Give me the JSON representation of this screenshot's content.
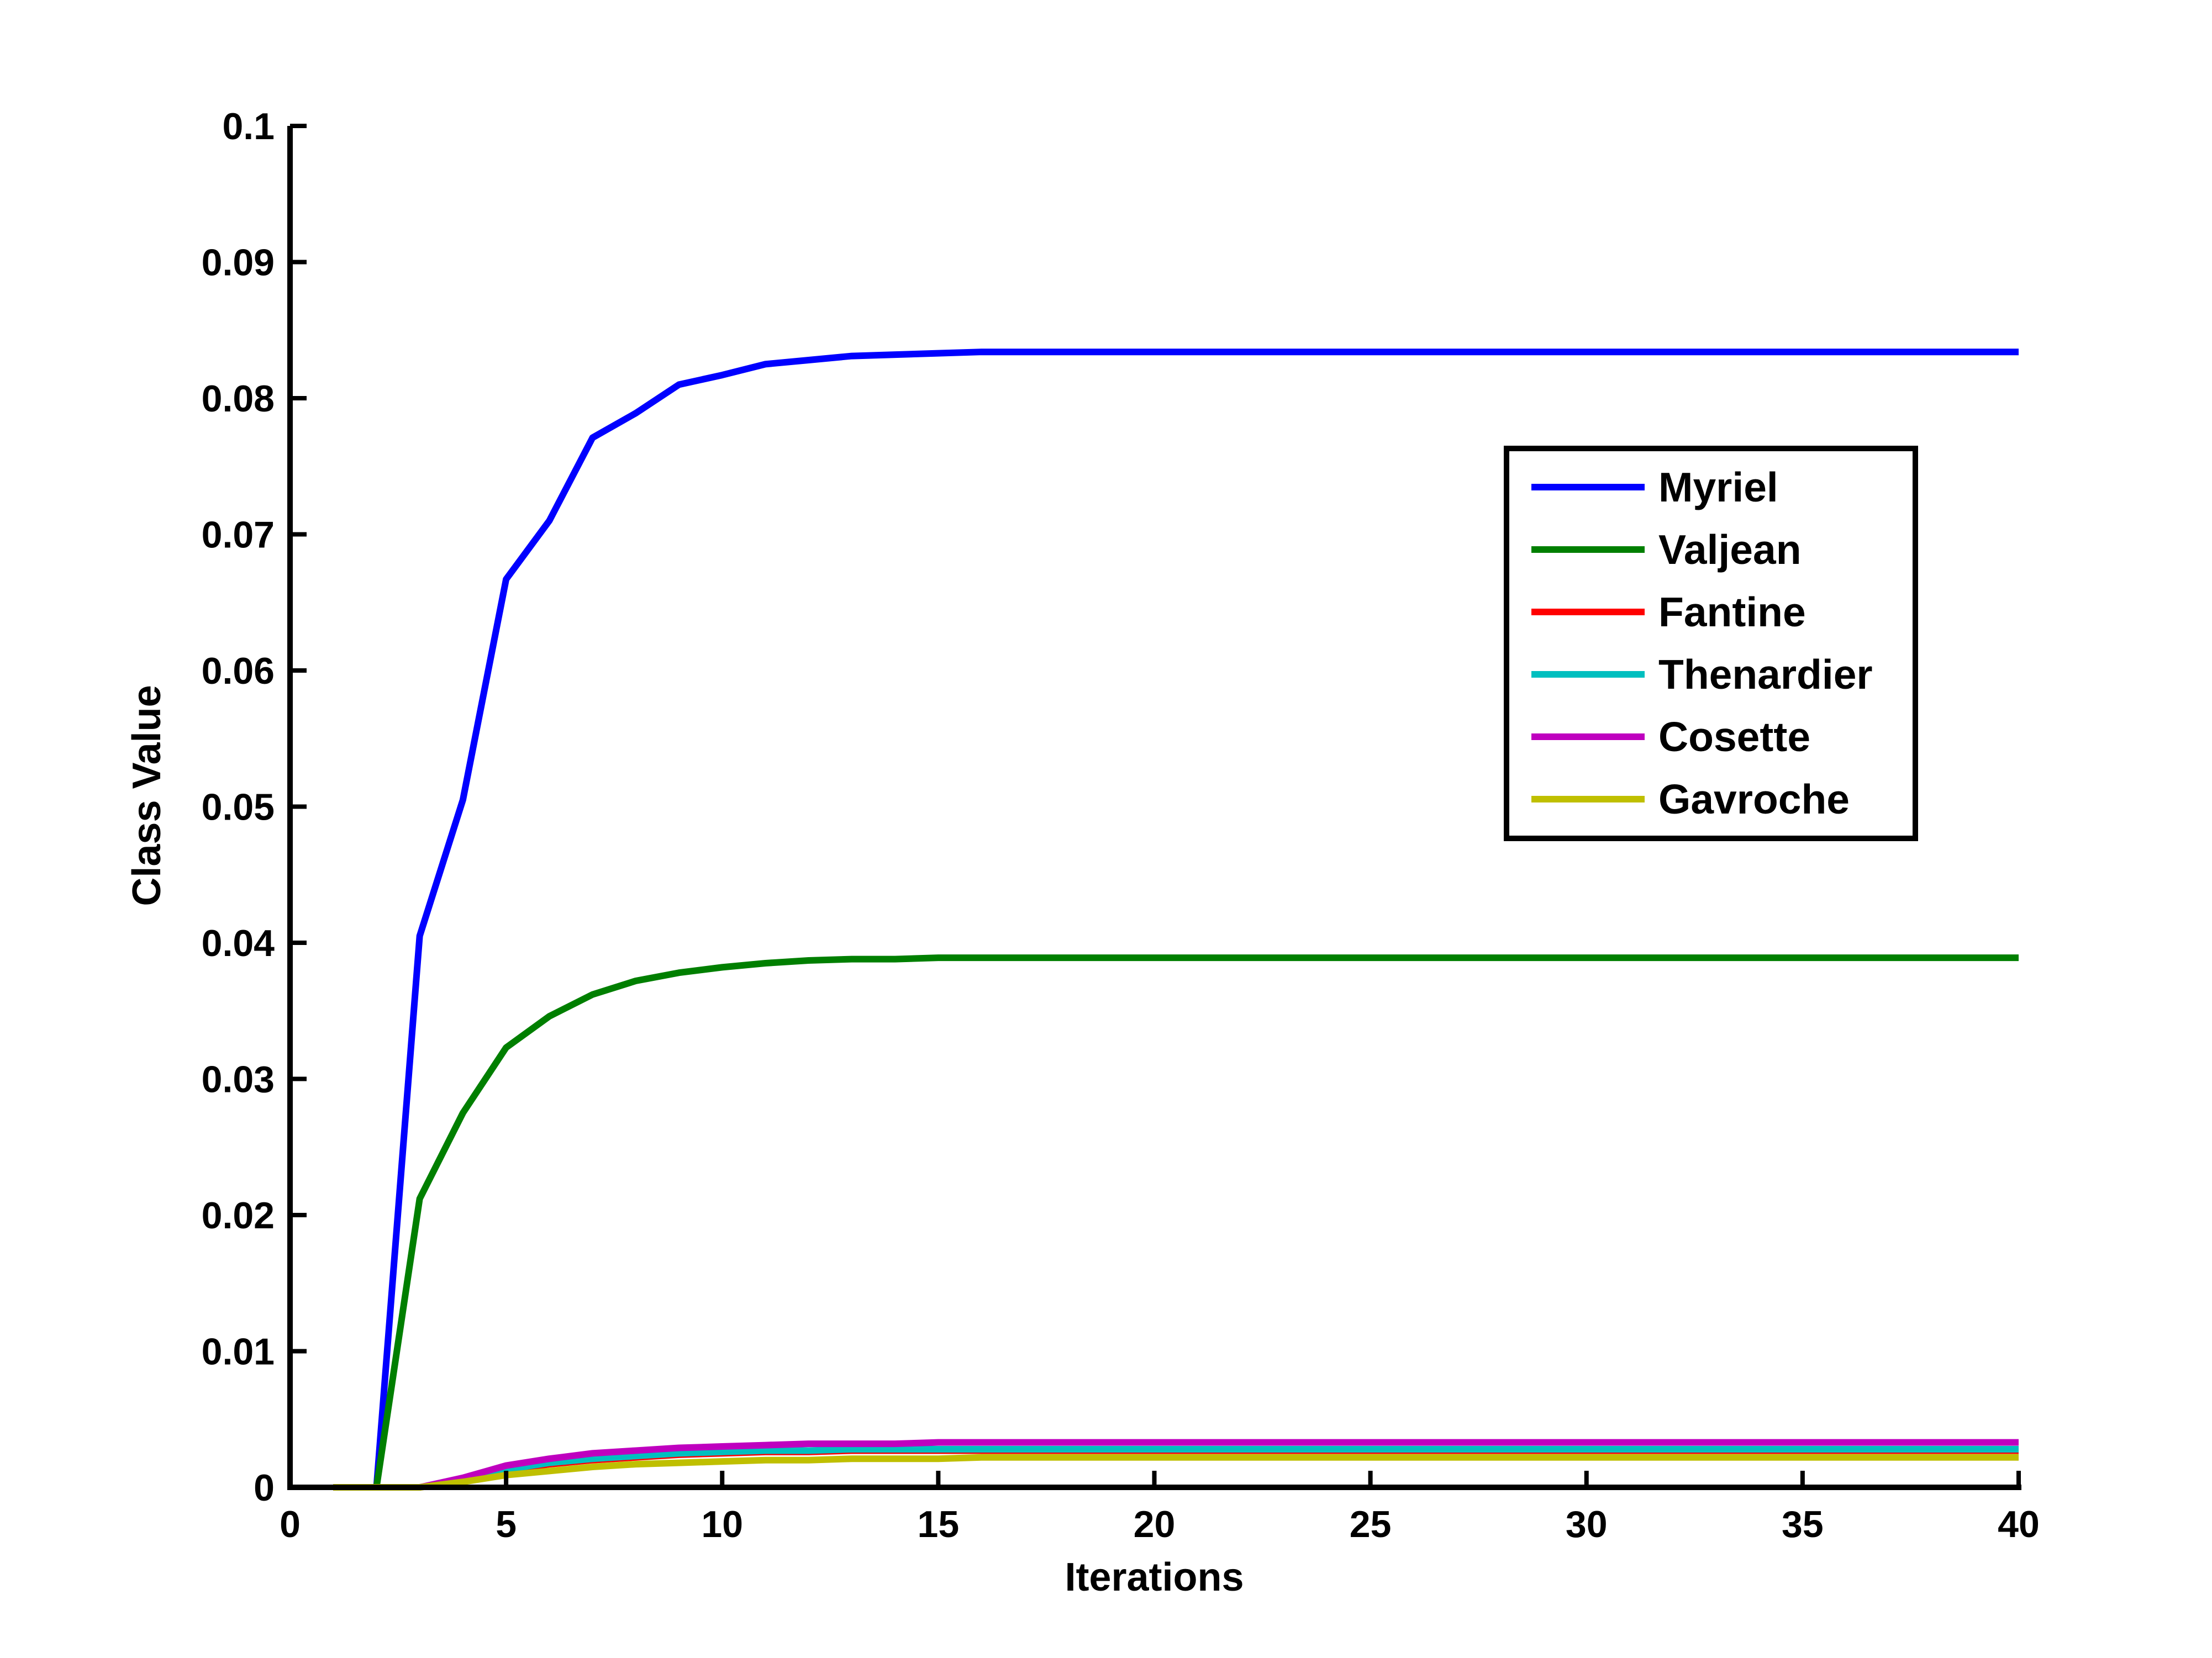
{
  "chart_data": {
    "type": "line",
    "title": "",
    "xlabel": "Iterations",
    "ylabel": "Class Value",
    "xlim": [
      0,
      40
    ],
    "ylim": [
      0,
      0.1
    ],
    "x_ticks": [
      "0",
      "5",
      "10",
      "15",
      "20",
      "25",
      "30",
      "35",
      "40"
    ],
    "y_ticks": [
      "0",
      "0.01",
      "0.02",
      "0.03",
      "0.04",
      "0.05",
      "0.06",
      "0.07",
      "0.08",
      "0.09",
      "0.1"
    ],
    "grid": false,
    "legend_position": "upper-right",
    "x": [
      1,
      2,
      3,
      4,
      5,
      6,
      7,
      8,
      9,
      10,
      11,
      12,
      13,
      14,
      15,
      16,
      17,
      18,
      19,
      20,
      21,
      22,
      23,
      24,
      25,
      26,
      27,
      28,
      29,
      30,
      31,
      32,
      33,
      34,
      35,
      36,
      37,
      38,
      39,
      40
    ],
    "series": [
      {
        "name": "Myriel",
        "color": "#0000ff",
        "values": [
          0,
          0,
          0.0405,
          0.0505,
          0.0667,
          0.071,
          0.0771,
          0.0789,
          0.081,
          0.0817,
          0.0825,
          0.0828,
          0.0831,
          0.0832,
          0.0833,
          0.0834,
          0.0834,
          0.0834,
          0.0834,
          0.0834,
          0.0834,
          0.0834,
          0.0834,
          0.0834,
          0.0834,
          0.0834,
          0.0834,
          0.0834,
          0.0834,
          0.0834,
          0.0834,
          0.0834,
          0.0834,
          0.0834,
          0.0834,
          0.0834,
          0.0834,
          0.0834,
          0.0834,
          0.0834
        ]
      },
      {
        "name": "Valjean",
        "color": "#007f00",
        "values": [
          0,
          0,
          0.0212,
          0.0275,
          0.0323,
          0.0346,
          0.0362,
          0.0372,
          0.0378,
          0.0382,
          0.0385,
          0.0387,
          0.0388,
          0.0388,
          0.0389,
          0.0389,
          0.0389,
          0.0389,
          0.0389,
          0.0389,
          0.0389,
          0.0389,
          0.0389,
          0.0389,
          0.0389,
          0.0389,
          0.0389,
          0.0389,
          0.0389,
          0.0389,
          0.0389,
          0.0389,
          0.0389,
          0.0389,
          0.0389,
          0.0389,
          0.0389,
          0.0389,
          0.0389,
          0.0389
        ]
      },
      {
        "name": "Fantine",
        "color": "#ff0000",
        "values": [
          0,
          0,
          0,
          0.0005,
          0.0012,
          0.0017,
          0.002,
          0.0022,
          0.0024,
          0.0025,
          0.0026,
          0.0026,
          0.0027,
          0.0027,
          0.0027,
          0.0027,
          0.0027,
          0.0027,
          0.0027,
          0.0027,
          0.0027,
          0.0027,
          0.0027,
          0.0027,
          0.0027,
          0.0027,
          0.0027,
          0.0027,
          0.0027,
          0.0027,
          0.0027,
          0.0027,
          0.0027,
          0.0027,
          0.0027,
          0.0027,
          0.0027,
          0.0027,
          0.0027,
          0.0027
        ]
      },
      {
        "name": "Thenardier",
        "color": "#00bfbf",
        "values": [
          0,
          0,
          0,
          0.0006,
          0.0013,
          0.0018,
          0.0021,
          0.0023,
          0.0025,
          0.0026,
          0.0027,
          0.0027,
          0.0028,
          0.0028,
          0.0028,
          0.0028,
          0.0028,
          0.0028,
          0.0028,
          0.0028,
          0.0028,
          0.0028,
          0.0028,
          0.0028,
          0.0028,
          0.0028,
          0.0028,
          0.0028,
          0.0028,
          0.0028,
          0.0028,
          0.0028,
          0.0028,
          0.0028,
          0.0028,
          0.0028,
          0.0028,
          0.0028,
          0.0028,
          0.0028
        ]
      },
      {
        "name": "Cosette",
        "color": "#bf00bf",
        "values": [
          0,
          0,
          0,
          0.0007,
          0.0016,
          0.0021,
          0.0025,
          0.0027,
          0.0029,
          0.003,
          0.0031,
          0.0032,
          0.0032,
          0.0032,
          0.0033,
          0.0033,
          0.0033,
          0.0033,
          0.0033,
          0.0033,
          0.0033,
          0.0033,
          0.0033,
          0.0033,
          0.0033,
          0.0033,
          0.0033,
          0.0033,
          0.0033,
          0.0033,
          0.0033,
          0.0033,
          0.0033,
          0.0033,
          0.0033,
          0.0033,
          0.0033,
          0.0033,
          0.0033,
          0.0033
        ]
      },
      {
        "name": "Gavroche",
        "color": "#bfbf00",
        "values": [
          0,
          0,
          0,
          0.0004,
          0.0009,
          0.0012,
          0.0015,
          0.0017,
          0.0018,
          0.0019,
          0.002,
          0.002,
          0.0021,
          0.0021,
          0.0021,
          0.0022,
          0.0022,
          0.0022,
          0.0022,
          0.0022,
          0.0022,
          0.0022,
          0.0022,
          0.0022,
          0.0022,
          0.0022,
          0.0022,
          0.0022,
          0.0022,
          0.0022,
          0.0022,
          0.0022,
          0.0022,
          0.0022,
          0.0022,
          0.0022,
          0.0022,
          0.0022,
          0.0022,
          0.0022
        ]
      }
    ]
  }
}
